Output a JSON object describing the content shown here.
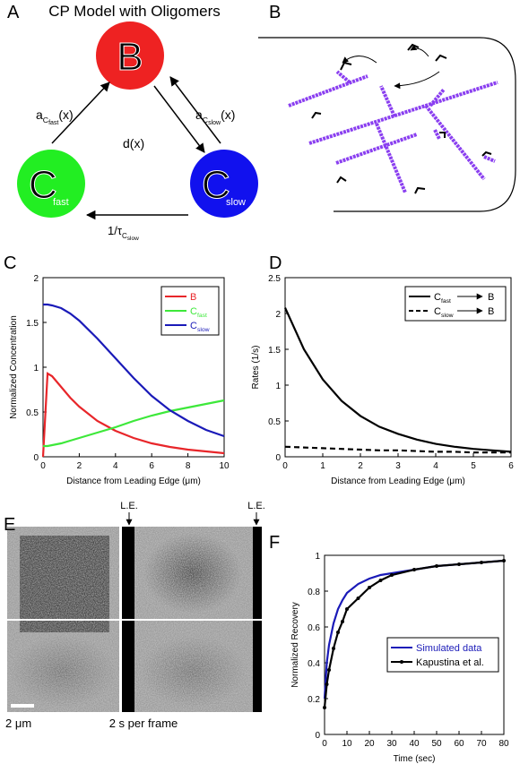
{
  "figure": {
    "panel_labels": [
      "A",
      "B",
      "C",
      "D",
      "E",
      "F"
    ]
  },
  "diagram": {
    "title": "CP Model with Oligomers",
    "nodes": [
      {
        "main": "B"
      },
      {
        "main": "C",
        "sub": "fast"
      },
      {
        "main": "C",
        "sub": "slow"
      }
    ],
    "edges": [
      {
        "main": "a",
        "sub": "C",
        "subsub": "fast",
        "arg": "(x)"
      },
      {
        "main": "a",
        "sub": "C",
        "subsub": "slow",
        "arg": "(x)"
      },
      {
        "main": "d(x)"
      },
      {
        "main": "1/τ",
        "sub": "C",
        "subsub": "slow"
      }
    ]
  },
  "image": {
    "markers": [
      "L.E.",
      "L.E."
    ],
    "scale_bar": "2 μm",
    "caption": "2 s per frame"
  },
  "chart_data": [
    {
      "type": "line",
      "xlabel": "Distance from Leading Edge (μm)",
      "ylabel": "Normalized Concentration",
      "x": [
        0,
        0.25,
        0.5,
        1,
        1.5,
        2,
        3,
        4,
        5,
        6,
        7,
        8,
        9,
        10
      ],
      "series": [
        {
          "name": "B",
          "color": "#e8262a",
          "values": [
            0,
            0.93,
            0.9,
            0.78,
            0.66,
            0.56,
            0.4,
            0.29,
            0.21,
            0.15,
            0.11,
            0.08,
            0.06,
            0.04
          ]
        },
        {
          "name": "C",
          "subscript": "fast",
          "color": "#3de83a",
          "values": [
            0.12,
            0.12,
            0.13,
            0.15,
            0.18,
            0.21,
            0.27,
            0.33,
            0.4,
            0.46,
            0.51,
            0.55,
            0.59,
            0.63
          ]
        },
        {
          "name": "C",
          "subscript": "slow",
          "color": "#1a1ab8",
          "values": [
            1.7,
            1.7,
            1.69,
            1.66,
            1.6,
            1.52,
            1.32,
            1.1,
            0.88,
            0.68,
            0.52,
            0.4,
            0.3,
            0.23
          ]
        }
      ],
      "xlim": [
        0,
        10
      ],
      "ylim": [
        0,
        2
      ],
      "xticks": [
        0,
        2,
        4,
        6,
        8,
        10
      ],
      "yticks": [
        0,
        0.5,
        1,
        1.5,
        2
      ],
      "legend": "upper right"
    },
    {
      "type": "line",
      "xlabel": "Distance from Leading Edge (μm)",
      "ylabel": "Rates (1/s)",
      "x": [
        0,
        0.5,
        1,
        1.5,
        2,
        2.5,
        3,
        3.5,
        4,
        4.5,
        5,
        5.5,
        6
      ],
      "series": [
        {
          "name": "C",
          "subscript": "fast",
          "target": "B",
          "color": "#000000",
          "dash": "solid",
          "values": [
            2.08,
            1.5,
            1.08,
            0.78,
            0.57,
            0.42,
            0.32,
            0.24,
            0.18,
            0.14,
            0.11,
            0.09,
            0.07
          ]
        },
        {
          "name": "C",
          "subscript": "slow",
          "target": "B",
          "color": "#000000",
          "dash": "dashed",
          "values": [
            0.14,
            0.13,
            0.12,
            0.11,
            0.1,
            0.09,
            0.09,
            0.08,
            0.07,
            0.07,
            0.06,
            0.06,
            0.06
          ]
        }
      ],
      "xlim": [
        0,
        6
      ],
      "ylim": [
        0,
        2.5
      ],
      "xticks": [
        0,
        1,
        2,
        3,
        4,
        5,
        6
      ],
      "yticks": [
        0,
        0.5,
        1,
        1.5,
        2,
        2.5
      ],
      "legend": "upper right"
    },
    {
      "type": "line",
      "xlabel": "Time (sec)",
      "ylabel": "Normalized Recovery",
      "x": [
        0,
        1,
        2,
        4,
        6,
        8,
        10,
        15,
        20,
        25,
        30,
        40,
        50,
        60,
        70,
        80
      ],
      "series": [
        {
          "name": "Simulated data",
          "color": "#1a1ab8",
          "values": [
            0.2,
            0.4,
            0.5,
            0.62,
            0.7,
            0.75,
            0.79,
            0.84,
            0.87,
            0.89,
            0.9,
            0.92,
            0.94,
            0.95,
            0.96,
            0.97
          ]
        },
        {
          "name": "Kapustina et al.",
          "color": "#000000",
          "marker": "dot",
          "values": [
            0.15,
            0.28,
            0.36,
            0.48,
            0.57,
            0.63,
            0.7,
            0.76,
            0.82,
            0.86,
            0.89,
            0.92,
            0.94,
            0.95,
            0.96,
            0.97
          ]
        }
      ],
      "xlim": [
        0,
        80
      ],
      "ylim": [
        0,
        1
      ],
      "xticks": [
        0,
        10,
        20,
        30,
        40,
        50,
        60,
        70,
        80
      ],
      "yticks": [
        0,
        0.2,
        0.4,
        0.6,
        0.8,
        1
      ],
      "legend": "lower right"
    }
  ]
}
